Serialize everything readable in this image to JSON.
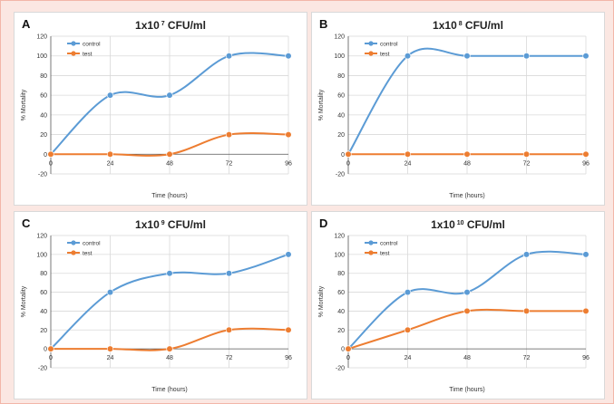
{
  "figure": {
    "panels": [
      {
        "label": "A",
        "title_base": "1x10",
        "title_exp": "7",
        "title_unit": " CFU/ml"
      },
      {
        "label": "B",
        "title_base": "1x10",
        "title_exp": "8",
        "title_unit": " CFU/ml"
      },
      {
        "label": "C",
        "title_base": "1x10",
        "title_exp": "9",
        "title_unit": " CFU/ml"
      },
      {
        "label": "D",
        "title_base": "1x10",
        "title_exp": "10",
        "title_unit": " CFU/ml"
      }
    ]
  },
  "chart_data": [
    {
      "type": "line",
      "title": "1x10 7 CFU/ml",
      "xlabel": "Time (hours)",
      "ylabel": "% Mortality",
      "x": [
        0,
        24,
        48,
        72,
        96
      ],
      "xticks": [
        "0",
        "24",
        "48",
        "72",
        "96"
      ],
      "ylim": [
        -20,
        120
      ],
      "yticks": [
        "-20",
        "0",
        "20",
        "40",
        "60",
        "80",
        "100",
        "120"
      ],
      "grid": true,
      "legend": "top-left",
      "series": [
        {
          "name": "control",
          "color": "#5b9bd5",
          "values": [
            0,
            60,
            60,
            100,
            100
          ]
        },
        {
          "name": "test",
          "color": "#ed7d31",
          "values": [
            0,
            0,
            0,
            20,
            20
          ]
        }
      ]
    },
    {
      "type": "line",
      "title": "1x10 8 CFU/ml",
      "xlabel": "Time (hours)",
      "ylabel": "% Mortality",
      "x": [
        0,
        24,
        48,
        72,
        96
      ],
      "xticks": [
        "0",
        "24",
        "48",
        "72",
        "96"
      ],
      "ylim": [
        -20,
        120
      ],
      "yticks": [
        "-20",
        "0",
        "20",
        "40",
        "60",
        "80",
        "100",
        "120"
      ],
      "grid": true,
      "legend": "top-left",
      "series": [
        {
          "name": "control",
          "color": "#5b9bd5",
          "values": [
            0,
            100,
            100,
            100,
            100
          ]
        },
        {
          "name": "test",
          "color": "#ed7d31",
          "values": [
            0,
            0,
            0,
            0,
            0
          ]
        }
      ]
    },
    {
      "type": "line",
      "title": "1x10 9 CFU/ml",
      "xlabel": "Time (hours)",
      "ylabel": "% Mortality",
      "x": [
        0,
        24,
        48,
        72,
        96
      ],
      "xticks": [
        "0",
        "24",
        "48",
        "72",
        "96"
      ],
      "ylim": [
        -20,
        120
      ],
      "yticks": [
        "-20",
        "0",
        "20",
        "40",
        "60",
        "80",
        "100",
        "120"
      ],
      "grid": true,
      "legend": "top-left",
      "series": [
        {
          "name": "control",
          "color": "#5b9bd5",
          "values": [
            0,
            60,
            80,
            80,
            100
          ]
        },
        {
          "name": "test",
          "color": "#ed7d31",
          "values": [
            0,
            0,
            0,
            20,
            20
          ]
        }
      ]
    },
    {
      "type": "line",
      "title": "1x10 10 CFU/ml",
      "xlabel": "Time (hours)",
      "ylabel": "% Mortality",
      "x": [
        0,
        24,
        48,
        72,
        96
      ],
      "xticks": [
        "0",
        "24",
        "48",
        "72",
        "96"
      ],
      "ylim": [
        -20,
        120
      ],
      "yticks": [
        "-20",
        "0",
        "20",
        "40",
        "60",
        "80",
        "100",
        "120"
      ],
      "grid": true,
      "legend": "top-left",
      "series": [
        {
          "name": "control",
          "color": "#5b9bd5",
          "values": [
            0,
            60,
            60,
            100,
            100
          ]
        },
        {
          "name": "test",
          "color": "#ed7d31",
          "values": [
            0,
            20,
            40,
            40,
            40
          ]
        }
      ]
    }
  ]
}
